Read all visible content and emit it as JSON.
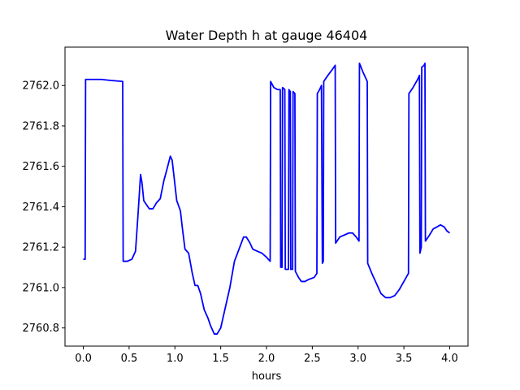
{
  "chart_data": {
    "type": "line",
    "title": "Water Depth h at gauge 46404",
    "xlabel": "hours",
    "ylabel": "",
    "xlim": [
      -0.2,
      4.2
    ],
    "ylim": [
      2760.71,
      2762.19
    ],
    "grid": false,
    "xticks": [
      0.0,
      0.5,
      1.0,
      1.5,
      2.0,
      2.5,
      3.0,
      3.5,
      4.0
    ],
    "xtick_labels": [
      "0.0",
      "0.5",
      "1.0",
      "1.5",
      "2.0",
      "2.5",
      "3.0",
      "3.5",
      "4.0"
    ],
    "yticks": [
      2760.8,
      2761.0,
      2761.2,
      2761.4,
      2761.6,
      2761.8,
      2762.0
    ],
    "ytick_labels": [
      "2760.8",
      "2761.0",
      "2761.2",
      "2761.4",
      "2761.6",
      "2761.8",
      "2762.0"
    ],
    "line_color": "#0000ff",
    "series": [
      {
        "points": [
          [
            0.0,
            2761.14
          ],
          [
            0.02,
            2761.14
          ],
          [
            0.025,
            2762.03
          ],
          [
            0.1,
            2762.03
          ],
          [
            0.2,
            2762.03
          ],
          [
            0.3,
            2762.025
          ],
          [
            0.43,
            2762.02
          ],
          [
            0.435,
            2761.13
          ],
          [
            0.48,
            2761.13
          ],
          [
            0.53,
            2761.14
          ],
          [
            0.57,
            2761.18
          ],
          [
            0.6,
            2761.38
          ],
          [
            0.625,
            2761.56
          ],
          [
            0.64,
            2761.52
          ],
          [
            0.66,
            2761.43
          ],
          [
            0.69,
            2761.41
          ],
          [
            0.72,
            2761.39
          ],
          [
            0.76,
            2761.39
          ],
          [
            0.8,
            2761.42
          ],
          [
            0.84,
            2761.44
          ],
          [
            0.88,
            2761.53
          ],
          [
            0.91,
            2761.58
          ],
          [
            0.95,
            2761.65
          ],
          [
            0.97,
            2761.63
          ],
          [
            0.99,
            2761.55
          ],
          [
            1.02,
            2761.43
          ],
          [
            1.06,
            2761.38
          ],
          [
            1.08,
            2761.3
          ],
          [
            1.11,
            2761.19
          ],
          [
            1.15,
            2761.17
          ],
          [
            1.19,
            2761.07
          ],
          [
            1.22,
            2761.01
          ],
          [
            1.25,
            2761.01
          ],
          [
            1.28,
            2760.97
          ],
          [
            1.32,
            2760.89
          ],
          [
            1.36,
            2760.85
          ],
          [
            1.39,
            2760.81
          ],
          [
            1.43,
            2760.77
          ],
          [
            1.46,
            2760.77
          ],
          [
            1.5,
            2760.8
          ],
          [
            1.55,
            2760.9
          ],
          [
            1.6,
            2761.0
          ],
          [
            1.65,
            2761.13
          ],
          [
            1.7,
            2761.19
          ],
          [
            1.75,
            2761.25
          ],
          [
            1.78,
            2761.25
          ],
          [
            1.82,
            2761.22
          ],
          [
            1.85,
            2761.19
          ],
          [
            1.9,
            2761.18
          ],
          [
            1.95,
            2761.17
          ],
          [
            2.0,
            2761.15
          ],
          [
            2.04,
            2761.13
          ],
          [
            2.045,
            2762.02
          ],
          [
            2.08,
            2761.99
          ],
          [
            2.12,
            2761.98
          ],
          [
            2.15,
            2761.98
          ],
          [
            2.155,
            2761.1
          ],
          [
            2.17,
            2761.1
          ],
          [
            2.175,
            2761.99
          ],
          [
            2.2,
            2761.98
          ],
          [
            2.205,
            2761.09
          ],
          [
            2.24,
            2761.09
          ],
          [
            2.245,
            2761.98
          ],
          [
            2.26,
            2761.97
          ],
          [
            2.265,
            2761.09
          ],
          [
            2.285,
            2761.09
          ],
          [
            2.29,
            2761.97
          ],
          [
            2.31,
            2761.96
          ],
          [
            2.315,
            2761.08
          ],
          [
            2.35,
            2761.05
          ],
          [
            2.38,
            2761.03
          ],
          [
            2.42,
            2761.03
          ],
          [
            2.46,
            2761.04
          ],
          [
            2.52,
            2761.05
          ],
          [
            2.55,
            2761.07
          ],
          [
            2.555,
            2761.96
          ],
          [
            2.58,
            2761.98
          ],
          [
            2.6,
            2762.0
          ],
          [
            2.61,
            2761.12
          ],
          [
            2.62,
            2761.13
          ],
          [
            2.625,
            2762.02
          ],
          [
            2.67,
            2762.05
          ],
          [
            2.72,
            2762.08
          ],
          [
            2.75,
            2762.1
          ],
          [
            2.755,
            2761.22
          ],
          [
            2.8,
            2761.25
          ],
          [
            2.85,
            2761.26
          ],
          [
            2.9,
            2761.27
          ],
          [
            2.94,
            2761.27
          ],
          [
            2.98,
            2761.25
          ],
          [
            3.01,
            2761.23
          ],
          [
            3.015,
            2762.11
          ],
          [
            3.05,
            2762.07
          ],
          [
            3.1,
            2762.02
          ],
          [
            3.105,
            2761.12
          ],
          [
            3.15,
            2761.07
          ],
          [
            3.2,
            2761.02
          ],
          [
            3.25,
            2760.97
          ],
          [
            3.3,
            2760.95
          ],
          [
            3.35,
            2760.95
          ],
          [
            3.4,
            2760.96
          ],
          [
            3.45,
            2760.99
          ],
          [
            3.5,
            2761.03
          ],
          [
            3.55,
            2761.07
          ],
          [
            3.555,
            2761.96
          ],
          [
            3.6,
            2761.99
          ],
          [
            3.65,
            2762.03
          ],
          [
            3.67,
            2762.05
          ],
          [
            3.675,
            2761.17
          ],
          [
            3.69,
            2761.2
          ],
          [
            3.695,
            2762.09
          ],
          [
            3.72,
            2762.1
          ],
          [
            3.73,
            2762.11
          ],
          [
            3.735,
            2761.23
          ],
          [
            3.78,
            2761.26
          ],
          [
            3.82,
            2761.29
          ],
          [
            3.86,
            2761.3
          ],
          [
            3.9,
            2761.31
          ],
          [
            3.94,
            2761.3
          ],
          [
            3.97,
            2761.28
          ],
          [
            4.0,
            2761.27
          ]
        ]
      }
    ]
  }
}
